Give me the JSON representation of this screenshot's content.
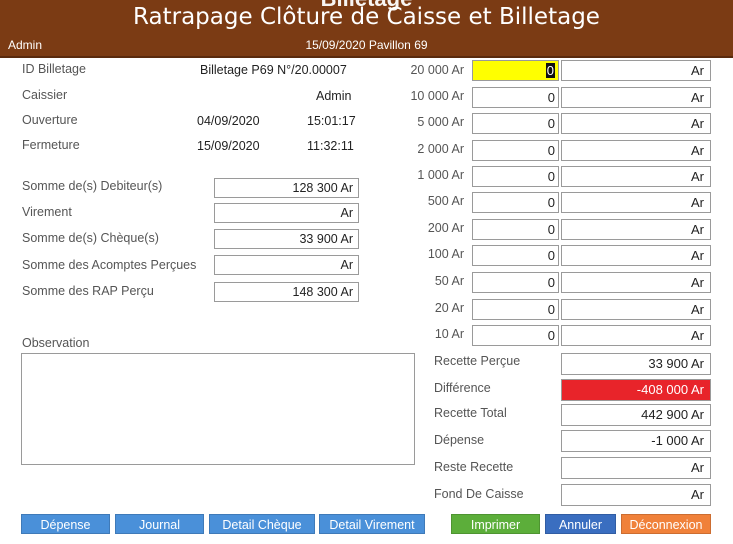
{
  "header": {
    "ghost_title": "Billetage",
    "title": "Ratrapage Clôture de Caisse et Billetage",
    "user": "Admin",
    "date_location": "15/09/2020 Pavillon 69"
  },
  "info": {
    "id_label": "ID Billetage",
    "id_value": "Billetage P69 N°/20.00007",
    "caissier_label": "Caissier",
    "caissier_value": "Admin",
    "ouverture_label": "Ouverture",
    "ouverture_date": "04/09/2020",
    "ouverture_time": "15:01:17",
    "fermeture_label": "Fermeture",
    "fermeture_date": "15/09/2020",
    "fermeture_time": "11:32:11"
  },
  "sums": [
    {
      "label": "Somme de(s) Debiteur(s)",
      "value": "128 300 Ar"
    },
    {
      "label": "Virement",
      "value": "Ar"
    },
    {
      "label": "Somme de(s) Chèque(s)",
      "value": "33 900 Ar"
    },
    {
      "label": "Somme des Acomptes Perçues",
      "value": "Ar"
    },
    {
      "label": "Somme des RAP Perçu",
      "value": "148 300 Ar"
    }
  ],
  "observation_label": "Observation",
  "observation_value": "",
  "billetage": [
    {
      "denomination": "20 000 Ar",
      "qty": "0",
      "amount": "Ar"
    },
    {
      "denomination": "10 000 Ar",
      "qty": "0",
      "amount": "Ar"
    },
    {
      "denomination": "5 000 Ar",
      "qty": "0",
      "amount": "Ar"
    },
    {
      "denomination": "2 000 Ar",
      "qty": "0",
      "amount": "Ar"
    },
    {
      "denomination": "1 000 Ar",
      "qty": "0",
      "amount": "Ar"
    },
    {
      "denomination": "500 Ar",
      "qty": "0",
      "amount": "Ar"
    },
    {
      "denomination": "200 Ar",
      "qty": "0",
      "amount": "Ar"
    },
    {
      "denomination": "100 Ar",
      "qty": "0",
      "amount": "Ar"
    },
    {
      "denomination": "50 Ar",
      "qty": "0",
      "amount": "Ar"
    },
    {
      "denomination": "20 Ar",
      "qty": "0",
      "amount": "Ar"
    },
    {
      "denomination": "10 Ar",
      "qty": "0",
      "amount": "Ar"
    }
  ],
  "totals": [
    {
      "label": "Recette Perçue",
      "value": "33 900 Ar"
    },
    {
      "label": "Différence",
      "value": "-408 000 Ar"
    },
    {
      "label": "Recette Total",
      "value": "442 900 Ar"
    },
    {
      "label": "Dépense",
      "value": "-1 000 Ar"
    },
    {
      "label": "Reste Recette",
      "value": "Ar"
    },
    {
      "label": "Fond De Caisse",
      "value": "Ar"
    }
  ],
  "buttons": {
    "depense": "Dépense",
    "journal": "Journal",
    "detail_cheque": "Detail Chèque",
    "detail_virement": "Detail Virement",
    "imprimer": "Imprimer",
    "annuler": "Annuler",
    "deconnexion": "Déconnexion"
  },
  "colors": {
    "header": "#7b3b14",
    "highlight": "#ffff00",
    "difference": "#e8242a",
    "blue_button": "#4a90d9",
    "green_button": "#5cae3a",
    "orange_button": "#f0813a"
  }
}
